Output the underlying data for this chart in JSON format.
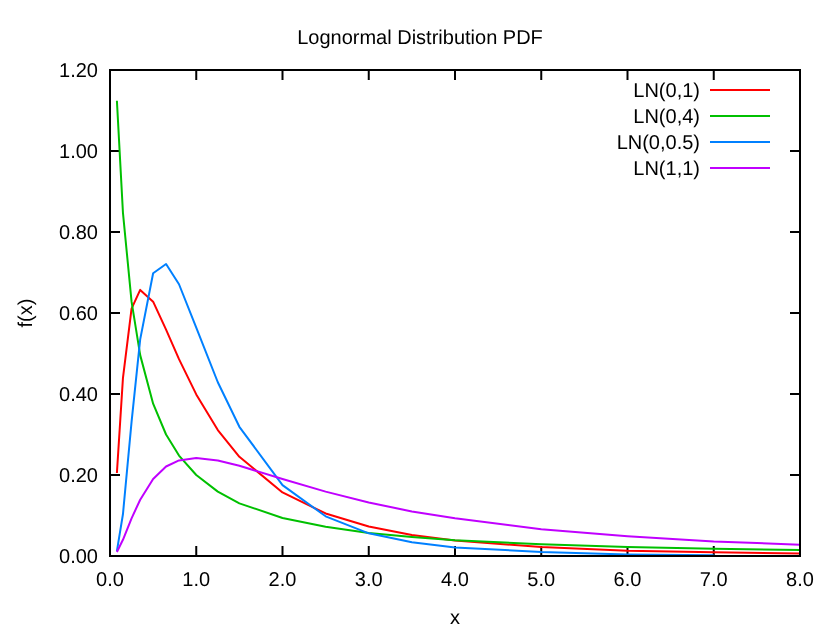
{
  "chart_data": {
    "type": "line",
    "title": "Lognormal Distribution PDF",
    "xlabel": "x",
    "ylabel": "f(x)",
    "x": [
      0.08,
      0.15,
      0.25,
      0.35,
      0.5,
      0.65,
      0.8,
      1,
      1.25,
      1.5,
      2,
      2.5,
      3,
      3.5,
      4,
      5,
      6,
      7,
      8
    ],
    "series": [
      {
        "name": "LN(0,1)",
        "color": "#ff0000",
        "values": [
          0.205,
          0.439,
          0.611,
          0.657,
          0.628,
          0.559,
          0.486,
          0.399,
          0.311,
          0.245,
          0.157,
          0.105,
          0.073,
          0.052,
          0.038,
          0.022,
          0.013,
          0.009,
          0.006
        ]
      },
      {
        "name": "LN(0,4)",
        "color": "#00c000",
        "values": [
          1.124,
          0.848,
          0.628,
          0.496,
          0.376,
          0.3,
          0.248,
          0.2,
          0.159,
          0.13,
          0.094,
          0.072,
          0.057,
          0.047,
          0.039,
          0.029,
          0.022,
          0.018,
          0.015
        ]
      },
      {
        "name": "LN(0,0.5)",
        "color": "#0080ff",
        "values": [
          0.012,
          0.103,
          0.331,
          0.535,
          0.698,
          0.721,
          0.671,
          0.564,
          0.429,
          0.319,
          0.175,
          0.098,
          0.056,
          0.034,
          0.021,
          0.01,
          0.004,
          0.002,
          null
        ]
      },
      {
        "name": "LN(1,1)",
        "color": "#c000ff",
        "values": [
          0.01,
          0.04,
          0.093,
          0.139,
          0.19,
          0.221,
          0.236,
          0.242,
          0.236,
          0.223,
          0.19,
          0.159,
          0.132,
          0.11,
          0.093,
          0.066,
          0.049,
          0.036,
          0.028
        ]
      }
    ],
    "xlim": [
      0,
      8
    ],
    "ylim": [
      0,
      1.2
    ],
    "xticks": [
      {
        "value": 0,
        "label": "0.0"
      },
      {
        "value": 1,
        "label": "1.0"
      },
      {
        "value": 2,
        "label": "2.0"
      },
      {
        "value": 3,
        "label": "3.0"
      },
      {
        "value": 4,
        "label": "4.0"
      },
      {
        "value": 5,
        "label": "5.0"
      },
      {
        "value": 6,
        "label": "6.0"
      },
      {
        "value": 7,
        "label": "7.0"
      },
      {
        "value": 8,
        "label": "8.0"
      }
    ],
    "yticks": [
      {
        "value": 0,
        "label": "0.00"
      },
      {
        "value": 0.2,
        "label": "0.20"
      },
      {
        "value": 0.4,
        "label": "0.40"
      },
      {
        "value": 0.6,
        "label": "0.60"
      },
      {
        "value": 0.8,
        "label": "0.80"
      },
      {
        "value": 1,
        "label": "1.00"
      },
      {
        "value": 1.2,
        "label": "1.20"
      }
    ],
    "legend": "top right",
    "grid": false,
    "marker": "none",
    "line_style": "solid"
  }
}
